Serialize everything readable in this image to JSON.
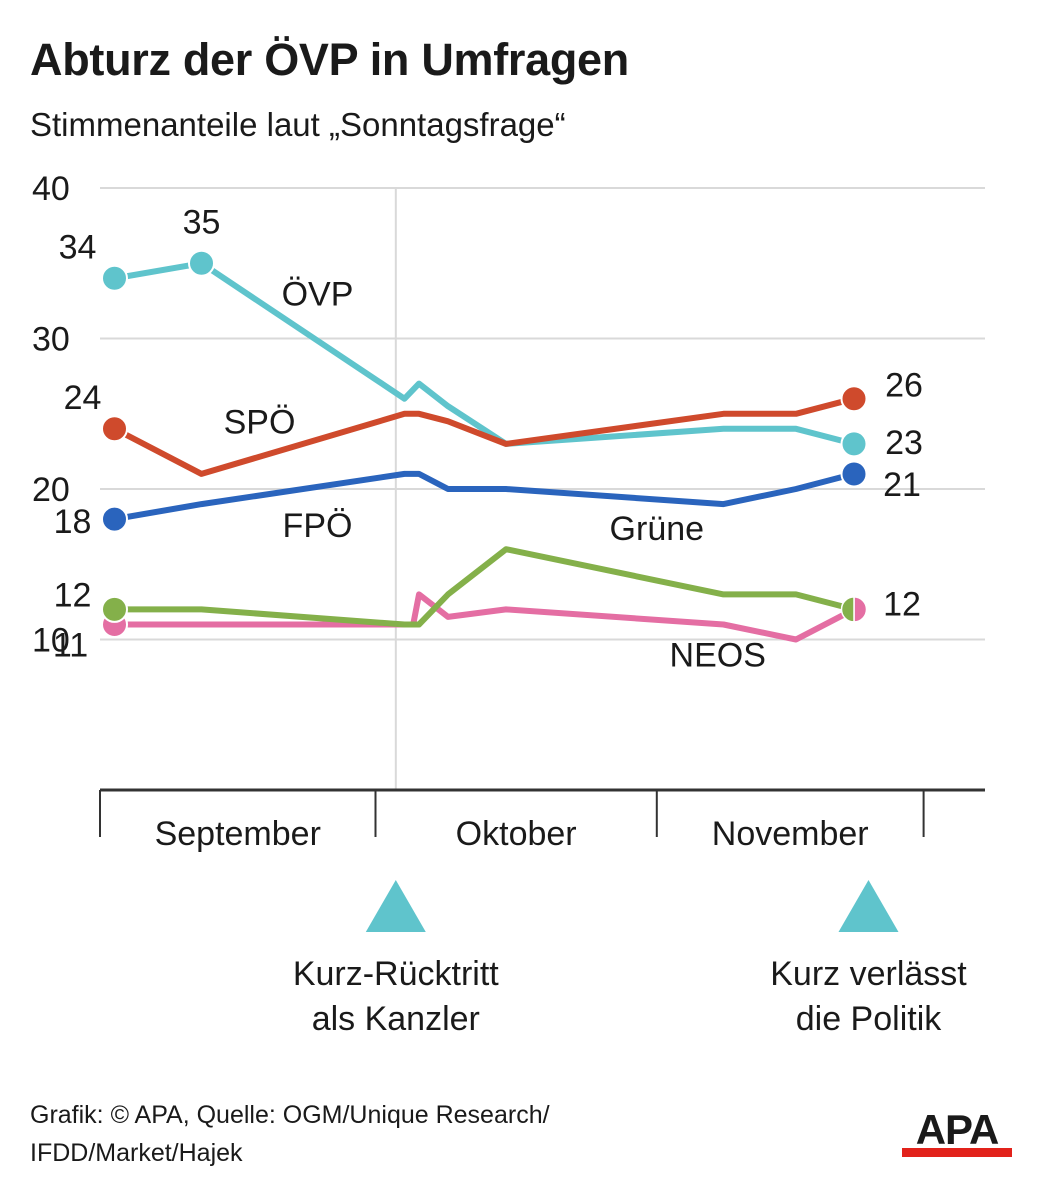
{
  "title": "Abturz der ÖVP in Umfragen",
  "subtitle": "Stimmenanteile laut „Sonntagsfrage“",
  "colors": {
    "ovp": "#5fc4cc",
    "spo": "#cf4a2c",
    "fpo": "#2a64bd",
    "grune": "#84b04a",
    "neos": "#e46ea3",
    "grid": "#d9d9d9",
    "axis": "#333333",
    "marker": "#5fc4cc",
    "logo_red": "#e2221b"
  },
  "chart_data": {
    "type": "line",
    "ylim": [
      0,
      40
    ],
    "yticks": [
      10,
      20,
      30,
      40
    ],
    "grid": true,
    "months": [
      "September",
      "Oktober",
      "November"
    ],
    "series": [
      {
        "key": "ovp",
        "name": "ÖVP",
        "points": [
          {
            "x": 0.5,
            "y": 34,
            "m": true,
            "label": "34"
          },
          {
            "x": 3.5,
            "y": 35,
            "m": true,
            "label": "35"
          },
          {
            "x": 10.5,
            "y": 26
          },
          {
            "x": 11.0,
            "y": 27
          },
          {
            "x": 12.0,
            "y": 25.5
          },
          {
            "x": 14.0,
            "y": 23
          },
          {
            "x": 21.5,
            "y": 24
          },
          {
            "x": 24.0,
            "y": 24
          },
          {
            "x": 26.0,
            "y": 23,
            "m": true,
            "label": "23"
          }
        ]
      },
      {
        "key": "spo",
        "name": "SPÖ",
        "points": [
          {
            "x": 0.5,
            "y": 24,
            "m": true,
            "label": "24"
          },
          {
            "x": 3.5,
            "y": 21
          },
          {
            "x": 10.5,
            "y": 25
          },
          {
            "x": 11.0,
            "y": 25
          },
          {
            "x": 12.0,
            "y": 24.5
          },
          {
            "x": 14.0,
            "y": 23
          },
          {
            "x": 21.5,
            "y": 25
          },
          {
            "x": 24.0,
            "y": 25
          },
          {
            "x": 26.0,
            "y": 26,
            "m": true,
            "label": "26"
          }
        ]
      },
      {
        "key": "fpo",
        "name": "FPÖ",
        "points": [
          {
            "x": 0.5,
            "y": 18,
            "m": true,
            "label": "18"
          },
          {
            "x": 3.5,
            "y": 19
          },
          {
            "x": 10.5,
            "y": 21
          },
          {
            "x": 11.0,
            "y": 21
          },
          {
            "x": 12.0,
            "y": 20
          },
          {
            "x": 14.0,
            "y": 20
          },
          {
            "x": 21.5,
            "y": 19
          },
          {
            "x": 24.0,
            "y": 20
          },
          {
            "x": 26.0,
            "y": 21,
            "m": true,
            "label": "21"
          }
        ]
      },
      {
        "key": "neos",
        "name": "NEOS",
        "points": [
          {
            "x": 0.5,
            "y": 11,
            "m": true,
            "label": "11"
          },
          {
            "x": 3.5,
            "y": 11
          },
          {
            "x": 10.8,
            "y": 11
          },
          {
            "x": 11.0,
            "y": 13
          },
          {
            "x": 12.0,
            "y": 11.5
          },
          {
            "x": 14.0,
            "y": 12
          },
          {
            "x": 21.5,
            "y": 11
          },
          {
            "x": 24.0,
            "y": 10
          },
          {
            "x": 26.0,
            "y": 12,
            "m": true,
            "half": "right",
            "label": "12"
          }
        ]
      },
      {
        "key": "grune",
        "name": "Grüne",
        "points": [
          {
            "x": 0.5,
            "y": 12,
            "m": true,
            "label": "12"
          },
          {
            "x": 3.5,
            "y": 12
          },
          {
            "x": 10.5,
            "y": 11
          },
          {
            "x": 11.0,
            "y": 11
          },
          {
            "x": 12.0,
            "y": 13
          },
          {
            "x": 14.0,
            "y": 16
          },
          {
            "x": 21.5,
            "y": 13
          },
          {
            "x": 24.0,
            "y": 13
          },
          {
            "x": 26.0,
            "y": 12,
            "m": true,
            "half": "left"
          }
        ]
      }
    ],
    "events": [
      {
        "x": 10.2,
        "line": "Kurz-Rücktritt",
        "line2": "als Kanzler",
        "vline": true
      },
      {
        "x": 26.5,
        "line": "Kurz verlässt",
        "line2": "die Politik",
        "vline": false
      }
    ]
  },
  "footer": {
    "line1": "Grafik: © APA, Quelle: OGM/Unique Research/",
    "line2": "IFDD/Market/Hajek"
  },
  "logo": {
    "text": "APA"
  }
}
